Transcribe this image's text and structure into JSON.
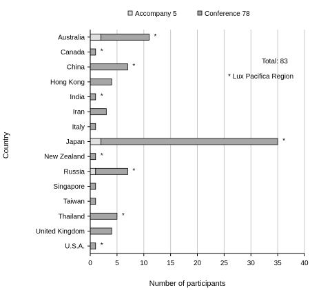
{
  "chart_data": {
    "type": "bar",
    "orientation": "horizontal",
    "stacked": true,
    "xlabel": "Number of participants",
    "ylabel": "Country",
    "xlim": [
      0,
      40
    ],
    "xticks": [
      0,
      5,
      10,
      15,
      20,
      25,
      30,
      35,
      40
    ],
    "grid": "vertical",
    "legend_position": "top",
    "categories": [
      "Australia",
      "Canada",
      "China",
      "Hong Kong",
      "India",
      "Iran",
      "Italy",
      "Japan",
      "New Zealand",
      "Russia",
      "Singapore",
      "Taiwan",
      "Thailand",
      "United Kingdom",
      "U.S.A."
    ],
    "series": [
      {
        "name": "Accompany 5",
        "color": "#e0e0e0",
        "values": [
          2,
          0,
          0,
          0,
          0,
          0,
          0,
          2,
          0,
          1,
          0,
          0,
          0,
          0,
          0
        ]
      },
      {
        "name": "Conference 78",
        "color": "#a6a6a6",
        "values": [
          9,
          1,
          7,
          4,
          1,
          3,
          1,
          33,
          1,
          6,
          1,
          1,
          5,
          4,
          1
        ]
      }
    ],
    "marked": [
      true,
      true,
      true,
      false,
      true,
      false,
      false,
      true,
      true,
      true,
      false,
      false,
      true,
      false,
      true
    ],
    "mark_symbol": "*",
    "annotations": [
      "Total: 83",
      "* Lux Pacifica Region"
    ]
  }
}
